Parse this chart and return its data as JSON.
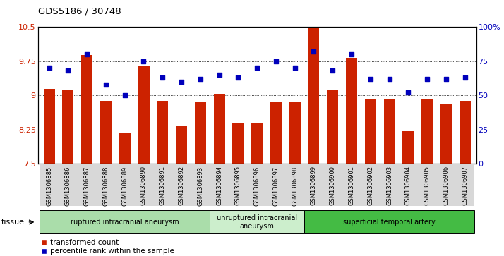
{
  "title": "GDS5186 / 30748",
  "samples": [
    "GSM1306885",
    "GSM1306886",
    "GSM1306887",
    "GSM1306888",
    "GSM1306889",
    "GSM1306890",
    "GSM1306891",
    "GSM1306892",
    "GSM1306893",
    "GSM1306894",
    "GSM1306895",
    "GSM1306896",
    "GSM1306897",
    "GSM1306898",
    "GSM1306899",
    "GSM1306900",
    "GSM1306901",
    "GSM1306902",
    "GSM1306903",
    "GSM1306904",
    "GSM1306905",
    "GSM1306906",
    "GSM1306907"
  ],
  "bar_values": [
    9.15,
    9.12,
    9.88,
    8.88,
    8.18,
    9.65,
    8.88,
    8.32,
    8.85,
    9.04,
    8.38,
    8.38,
    8.85,
    8.85,
    10.48,
    9.12,
    9.82,
    8.92,
    8.92,
    8.22,
    8.92,
    8.82,
    8.88
  ],
  "dot_values_pct": [
    70,
    68,
    80,
    58,
    50,
    75,
    63,
    60,
    62,
    65,
    63,
    70,
    75,
    70,
    82,
    68,
    80,
    62,
    62,
    52,
    62,
    62,
    63
  ],
  "ylim_left": [
    7.5,
    10.5
  ],
  "ylim_right": [
    0,
    100
  ],
  "yticks_left": [
    7.5,
    8.25,
    9.0,
    9.75,
    10.5
  ],
  "yticks_right": [
    0,
    25,
    50,
    75,
    100
  ],
  "ytick_labels_left": [
    "7.5",
    "8.25",
    "9",
    "9.75",
    "10.5"
  ],
  "ytick_labels_right": [
    "0",
    "25",
    "50",
    "75",
    "100%"
  ],
  "bar_color": "#cc2200",
  "dot_color": "#0000bb",
  "bg_color": "#ffffff",
  "plot_bg": "#ffffff",
  "tick_bg": "#dddddd",
  "axis_color_left": "#cc2200",
  "axis_color_right": "#0000bb",
  "groups": [
    {
      "label": "ruptured intracranial aneurysm",
      "start": 0,
      "end": 9,
      "color": "#aaddaa"
    },
    {
      "label": "unruptured intracranial\naneurysm",
      "start": 9,
      "end": 14,
      "color": "#cceecc"
    },
    {
      "label": "superficial temporal artery",
      "start": 14,
      "end": 23,
      "color": "#44bb44"
    }
  ],
  "legend_labels": [
    "transformed count",
    "percentile rank within the sample"
  ],
  "legend_colors": [
    "#cc2200",
    "#0000bb"
  ],
  "tissue_label": "tissue"
}
